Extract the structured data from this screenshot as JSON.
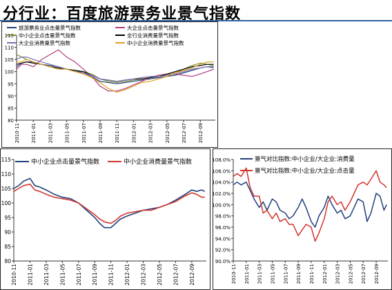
{
  "page": {
    "title": "分行业：百度旅游票务业景气指数"
  },
  "chart_data": [
    {
      "type": "line",
      "categories": [
        "2010-11",
        "2011-01",
        "2011-03",
        "2011-05",
        "2011-07",
        "2011-09",
        "2011-11",
        "2012-01",
        "2012-03",
        "2012-05",
        "2012-07",
        "2012-09"
      ],
      "ylim": [
        80,
        115
      ],
      "yticks": [
        80,
        85,
        90,
        95,
        100,
        105,
        110,
        115
      ],
      "x_end": 11.9,
      "legend": "top-left, two columns",
      "grid": false,
      "series": [
        {
          "name": "旅游票务业点击量景气指数",
          "color": "#1f3f7a",
          "x": [
            0,
            0.3,
            0.6,
            1,
            1.5,
            2,
            2.5,
            3,
            3.5,
            4,
            4.5,
            5,
            5.5,
            6,
            6.5,
            7,
            7.5,
            8,
            8.5,
            9,
            9.5,
            10,
            10.5,
            11,
            11.4,
            11.8
          ],
          "values": [
            102,
            103.5,
            104,
            104,
            103,
            102.5,
            102,
            101,
            100.5,
            99.5,
            98,
            96,
            95.5,
            95,
            95.5,
            96,
            96.5,
            97,
            97.5,
            98,
            98.5,
            99.5,
            100.5,
            101.5,
            102,
            102
          ]
        },
        {
          "name": "大企业点击量景气指数",
          "color": "#b03a7a",
          "x": [
            0,
            0.3,
            0.6,
            1,
            1.5,
            2,
            2.5,
            3,
            3.5,
            4,
            4.5,
            5,
            5.5,
            6,
            6.5,
            7,
            7.5,
            8,
            8.5,
            9,
            9.5,
            10,
            10.5,
            11,
            11.4,
            11.8
          ],
          "values": [
            101,
            103,
            103,
            102,
            105,
            107,
            109,
            106,
            104,
            101,
            98,
            94,
            92,
            92,
            93,
            94.5,
            96,
            97.5,
            98.5,
            99,
            99,
            98.5,
            98,
            99,
            100,
            101
          ]
        },
        {
          "name": "中小企业点击量景气指数",
          "color": "#7a8f3a",
          "x": [
            0,
            0.3,
            0.6,
            1,
            1.5,
            2,
            2.5,
            3,
            3.5,
            4,
            4.5,
            5,
            5.5,
            6,
            6.5,
            7,
            7.5,
            8,
            8.5,
            9,
            9.5,
            10,
            10.5,
            11,
            11.4,
            11.8
          ],
          "values": [
            107,
            106,
            105,
            104,
            103,
            102,
            101.5,
            101,
            100.5,
            100,
            99,
            97,
            96,
            95.5,
            96,
            96.5,
            97,
            97.5,
            98,
            98.5,
            99.5,
            101,
            102.5,
            103.5,
            103,
            102.5
          ]
        },
        {
          "name": "全行业消费量景气指数",
          "color": "#000000",
          "x": [
            0,
            0.3,
            0.6,
            1,
            1.5,
            2,
            2.5,
            3,
            3.5,
            4,
            4.5,
            5,
            5.5,
            6,
            6.5,
            7,
            7.5,
            8,
            8.5,
            9,
            9.5,
            10,
            10.5,
            11,
            11.4,
            11.8
          ],
          "values": [
            103,
            103.5,
            104,
            103.5,
            103,
            102,
            101.5,
            101,
            100.5,
            100,
            98.5,
            97,
            96.5,
            96,
            96.5,
            97,
            97,
            97.5,
            98,
            99,
            100,
            101,
            102,
            102.5,
            103,
            103
          ]
        },
        {
          "name": "大企业消费量景气指数",
          "color": "#7a6fb0",
          "x": [
            0,
            0.3,
            0.6,
            1,
            1.5,
            2,
            2.5,
            3,
            3.5,
            4,
            4.5,
            5,
            5.5,
            6,
            6.5,
            7,
            7.5,
            8,
            8.5,
            9,
            9.5,
            10,
            10.5,
            11,
            11.4,
            11.8
          ],
          "values": [
            105,
            106,
            106,
            105,
            104,
            103,
            102,
            101,
            100,
            99.5,
            98.5,
            97,
            96.5,
            96,
            96.5,
            97,
            97.5,
            98,
            98,
            98.5,
            99,
            100,
            101,
            101.5,
            102,
            101.5
          ]
        },
        {
          "name": "中小企业消费量景气指数",
          "color": "#e0a020",
          "x": [
            0,
            0.3,
            0.6,
            1,
            1.5,
            2,
            2.5,
            3,
            3.5,
            4,
            4.5,
            5,
            5.5,
            6,
            6.5,
            7,
            7.5,
            8,
            8.5,
            9,
            9.5,
            10,
            10.5,
            11,
            11.4,
            11.8
          ],
          "values": [
            104,
            104,
            105,
            104,
            103,
            102,
            101,
            101,
            100,
            99,
            97.5,
            95.5,
            93,
            91.5,
            92.5,
            94,
            95.5,
            96,
            97,
            98,
            99.5,
            100.5,
            101.5,
            103,
            104,
            104
          ]
        }
      ]
    },
    {
      "type": "line",
      "categories": [
        "2010-11",
        "2011-01",
        "2011-03",
        "2011-05",
        "2011-07",
        "2011-09",
        "2011-11",
        "2012-01",
        "2012-03",
        "2012-05",
        "2012-07",
        "2012-09"
      ],
      "ylim": [
        80,
        115
      ],
      "yticks": [
        80,
        85,
        90,
        95,
        100,
        105,
        110,
        115
      ],
      "x_end": 11.9,
      "legend": "top, one row",
      "grid": false,
      "series": [
        {
          "name": "中小企业点击量景气指数",
          "color": "#1f3f7a",
          "x": [
            0,
            0.3,
            0.6,
            1,
            1.3,
            1.6,
            2,
            2.5,
            3,
            3.5,
            4,
            4.5,
            5,
            5.3,
            5.6,
            6,
            6.3,
            6.6,
            7,
            7.5,
            8,
            8.5,
            9,
            9.5,
            10,
            10.3,
            10.6,
            11,
            11.3,
            11.6,
            11.8
          ],
          "values": [
            105,
            106,
            107.5,
            108.5,
            106,
            105.5,
            104.5,
            103,
            102,
            101.5,
            100,
            97.5,
            95,
            93,
            91.5,
            91.5,
            93,
            94.5,
            95.5,
            96.5,
            97.5,
            98,
            98.5,
            99.5,
            101,
            102,
            103,
            104.5,
            104,
            104.5,
            104
          ]
        },
        {
          "name": "中小企业消费量景气指数",
          "color": "#d0342c",
          "x": [
            0,
            0.3,
            0.6,
            1,
            1.3,
            1.6,
            2,
            2.5,
            3,
            3.5,
            4,
            4.5,
            5,
            5.3,
            5.6,
            6,
            6.3,
            6.6,
            7,
            7.5,
            8,
            8.5,
            9,
            9.5,
            10,
            10.3,
            10.6,
            11,
            11.3,
            11.6,
            11.8
          ],
          "values": [
            104,
            105,
            106,
            106.5,
            104.5,
            104,
            103,
            102,
            101.5,
            101,
            100,
            98,
            96,
            94.5,
            93.5,
            93,
            94,
            95.5,
            96.5,
            97,
            97.5,
            97.5,
            98.5,
            99.5,
            100.5,
            101.5,
            102.5,
            103.5,
            103,
            102,
            102
          ]
        }
      ]
    },
    {
      "type": "line",
      "categories": [
        "2010-11",
        "2011-01",
        "2011-03",
        "2011-05",
        "2011-07",
        "2011-09",
        "2011-11",
        "2012-01",
        "2012-03",
        "2012-05",
        "2012-07",
        "2012-09"
      ],
      "ylim": [
        90,
        108
      ],
      "yticks": [
        "90.0%",
        "92.0%",
        "94.0%",
        "96.0%",
        "98.0%",
        "100.0%",
        "102.0%",
        "104.0%",
        "106.0%",
        "108.0%"
      ],
      "x_end": 11.9,
      "legend": "top-left, stacked",
      "grid": false,
      "series": [
        {
          "name": "景气对比指数:中小企业/大企业:消费量",
          "color": "#1f3f7a",
          "x": [
            0,
            0.3,
            0.6,
            1,
            1.3,
            1.6,
            2,
            2.3,
            2.6,
            3,
            3.3,
            3.6,
            4,
            4.3,
            4.6,
            5,
            5.3,
            5.6,
            6,
            6.3,
            6.6,
            7,
            7.3,
            7.6,
            8,
            8.3,
            8.6,
            9,
            9.3,
            9.6,
            10,
            10.3,
            10.6,
            11,
            11.3,
            11.6,
            11.8
          ],
          "values": [
            103.5,
            104,
            103.5,
            104,
            102.5,
            101,
            99.5,
            100.5,
            99,
            101,
            100.5,
            99,
            98.5,
            97.5,
            98,
            99.5,
            101,
            99.5,
            97,
            96,
            98,
            99.5,
            101.5,
            100,
            98.5,
            99,
            97.5,
            98,
            99.5,
            101,
            100.5,
            97,
            98.5,
            102,
            101.5,
            99,
            100
          ]
        },
        {
          "name": "景气对比指数:中小企业/大企业:点击量",
          "color": "#d0342c",
          "x": [
            0,
            0.3,
            0.6,
            1,
            1.3,
            1.6,
            2,
            2.3,
            2.6,
            3,
            3.3,
            3.6,
            4,
            4.3,
            4.6,
            5,
            5.3,
            5.6,
            6,
            6.3,
            6.6,
            7,
            7.3,
            7.6,
            8,
            8.3,
            8.6,
            9,
            9.3,
            9.6,
            10,
            10.3,
            10.6,
            11,
            11.3,
            11.6,
            11.8
          ],
          "values": [
            105,
            105.5,
            105,
            106.5,
            103,
            101.5,
            101.5,
            98.5,
            99,
            97.5,
            98.5,
            97,
            97.5,
            96.5,
            96.5,
            94.5,
            95.5,
            96.5,
            96,
            93.5,
            95,
            97.5,
            100.5,
            101.5,
            100,
            100.5,
            99,
            100.5,
            102,
            103.5,
            104,
            103.5,
            104.5,
            106,
            104,
            103.5,
            103
          ]
        }
      ]
    }
  ]
}
